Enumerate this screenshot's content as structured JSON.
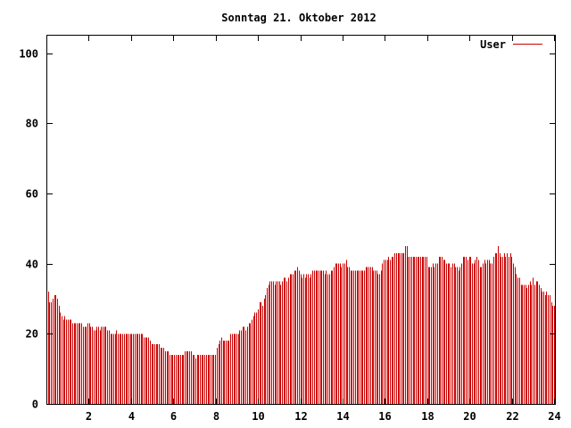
{
  "chart_data": {
    "type": "bar",
    "title": "Sonntag 21. Oktober 2012",
    "xlabel": "",
    "ylabel": "",
    "xlim": [
      0,
      24
    ],
    "ylim": [
      0,
      105
    ],
    "x_ticks": [
      "2",
      "4",
      "6",
      "8",
      "10",
      "12",
      "14",
      "16",
      "18",
      "20",
      "22",
      "24"
    ],
    "y_ticks": [
      "0",
      "20",
      "40",
      "60",
      "80",
      "100"
    ],
    "legend_position": "top-right",
    "grid": false,
    "bar_color": "#cc0000",
    "series": [
      {
        "name": "User",
        "color": "#cc0000",
        "values": [
          32,
          29,
          29,
          30,
          31,
          31,
          30,
          28,
          26,
          25,
          24,
          25,
          24,
          24,
          24,
          24,
          23,
          23,
          23,
          23,
          23,
          23,
          23,
          22,
          22,
          22,
          23,
          23,
          22,
          22,
          21,
          21,
          22,
          22,
          21,
          22,
          22,
          22,
          22,
          21,
          21,
          20,
          20,
          20,
          20,
          21,
          20,
          20,
          20,
          20,
          20,
          20,
          20,
          20,
          20,
          20,
          20,
          20,
          20,
          20,
          20,
          20,
          20,
          19,
          19,
          19,
          19,
          18,
          17,
          17,
          17,
          17,
          17,
          17,
          16,
          16,
          16,
          15,
          15,
          15,
          14,
          14,
          14,
          14,
          14,
          14,
          14,
          14,
          14,
          14,
          15,
          15,
          15,
          15,
          15,
          14,
          14,
          13,
          14,
          14,
          14,
          14,
          14,
          14,
          14,
          14,
          14,
          14,
          14,
          14,
          14,
          16,
          17,
          18,
          19,
          18,
          18,
          18,
          18,
          18,
          20,
          20,
          20,
          20,
          20,
          20,
          21,
          21,
          22,
          22,
          21,
          22,
          23,
          23,
          24,
          25,
          26,
          26,
          27,
          29,
          29,
          28,
          30,
          31,
          33,
          34,
          35,
          35,
          35,
          34,
          35,
          35,
          35,
          34,
          35,
          36,
          36,
          35,
          36,
          37,
          37,
          37,
          38,
          38,
          39,
          38,
          37,
          36,
          37,
          36,
          37,
          37,
          36,
          37,
          38,
          38,
          38,
          38,
          38,
          38,
          38,
          38,
          37,
          38,
          37,
          37,
          38,
          38,
          39,
          40,
          40,
          40,
          40,
          39,
          40,
          40,
          41,
          39,
          39,
          38,
          38,
          38,
          38,
          38,
          38,
          38,
          38,
          38,
          38,
          39,
          39,
          39,
          39,
          39,
          38,
          38,
          38,
          37,
          37,
          38,
          40,
          41,
          41,
          41,
          42,
          41,
          42,
          42,
          43,
          43,
          43,
          43,
          43,
          43,
          43,
          45,
          45,
          42,
          42,
          42,
          42,
          42,
          42,
          42,
          42,
          42,
          42,
          42,
          42,
          42,
          39,
          39,
          39,
          40,
          39,
          40,
          40,
          42,
          42,
          42,
          41,
          41,
          40,
          40,
          40,
          39,
          40,
          40,
          39,
          39,
          38,
          39,
          40,
          42,
          42,
          42,
          41,
          42,
          42,
          40,
          40,
          41,
          42,
          41,
          39,
          39,
          40,
          41,
          40,
          41,
          41,
          40,
          40,
          42,
          43,
          43,
          45,
          43,
          42,
          42,
          43,
          42,
          43,
          42,
          43,
          42,
          40,
          39,
          37,
          36,
          36,
          34,
          34,
          34,
          34,
          33,
          34,
          35,
          34,
          36,
          34,
          35,
          35,
          34,
          33,
          32,
          32,
          31,
          32,
          31,
          31,
          29,
          28,
          28
        ]
      }
    ]
  }
}
